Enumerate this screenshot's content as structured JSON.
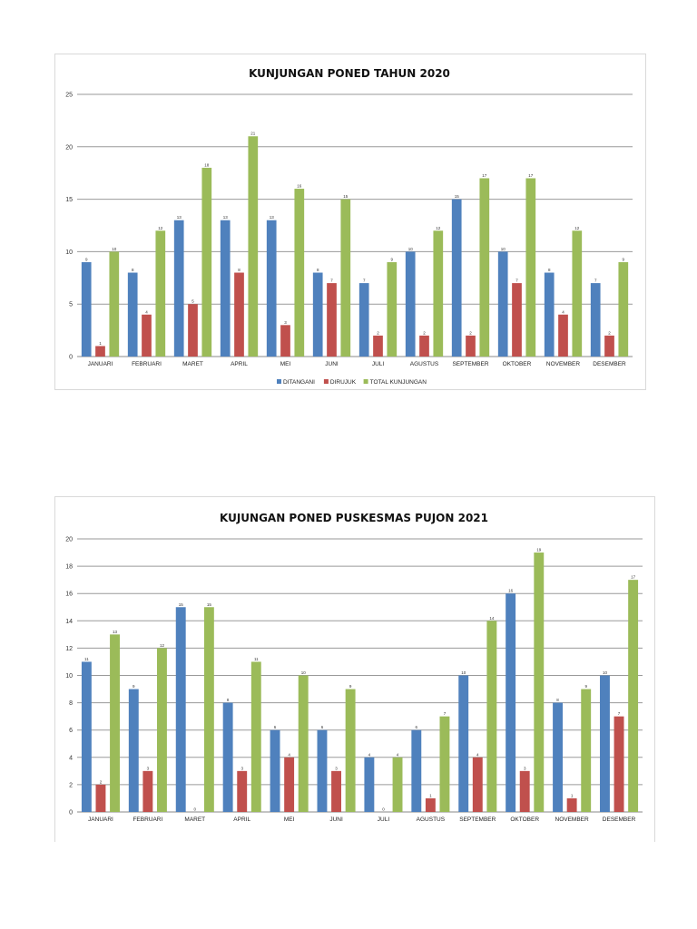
{
  "chart_data": [
    {
      "type": "bar",
      "title": "KUNJUNGAN PONED TAHUN 2020",
      "xlabel": "",
      "ylabel": "",
      "ylim": [
        0,
        25
      ],
      "yticks": [
        0,
        5,
        10,
        15,
        20,
        25
      ],
      "grid": true,
      "legend": "bottom",
      "categories": [
        "JANUARI",
        "FEBRUARI",
        "MARET",
        "APRIL",
        "MEI",
        "JUNI",
        "JULI",
        "AGUSTUS",
        "SEPTEMBER",
        "OKTOBER",
        "NOVEMBER",
        "DESEMBER"
      ],
      "series": [
        {
          "name": "DITANGANI",
          "color": "#4F81BD",
          "values": [
            9,
            8,
            13,
            13,
            13,
            8,
            7,
            10,
            15,
            10,
            8,
            7
          ]
        },
        {
          "name": "DIRUJUK",
          "color": "#C0504D",
          "values": [
            1,
            4,
            5,
            8,
            3,
            7,
            2,
            2,
            2,
            7,
            4,
            2
          ]
        },
        {
          "name": "TOTAL KUNJUNGAN",
          "color": "#9BBB59",
          "values": [
            10,
            12,
            18,
            21,
            16,
            15,
            9,
            12,
            17,
            17,
            12,
            9
          ]
        }
      ]
    },
    {
      "type": "bar",
      "title": "KUJUNGAN PONED PUSKESMAS PUJON 2021",
      "xlabel": "",
      "ylabel": "",
      "ylim": [
        0,
        20
      ],
      "yticks": [
        0,
        2,
        4,
        6,
        8,
        10,
        12,
        14,
        16,
        18,
        20
      ],
      "grid": true,
      "legend": "none",
      "categories": [
        "JANUARI",
        "FEBRUARI",
        "MARET",
        "APRIL",
        "MEI",
        "JUNI",
        "JULI",
        "AGUSTUS",
        "SEPTEMBER",
        "OKTOBER",
        "NOVEMBER",
        "DESEMBER"
      ],
      "series": [
        {
          "color": "#4F81BD",
          "values": [
            11,
            9,
            15,
            8,
            6,
            6,
            4,
            6,
            10,
            16,
            8,
            10
          ]
        },
        {
          "color": "#C0504D",
          "values": [
            2,
            3,
            0,
            3,
            4,
            3,
            0,
            1,
            4,
            3,
            1,
            7
          ]
        },
        {
          "color": "#9BBB59",
          "values": [
            13,
            12,
            15,
            11,
            10,
            9,
            4,
            7,
            14,
            19,
            9,
            17
          ]
        }
      ]
    }
  ]
}
